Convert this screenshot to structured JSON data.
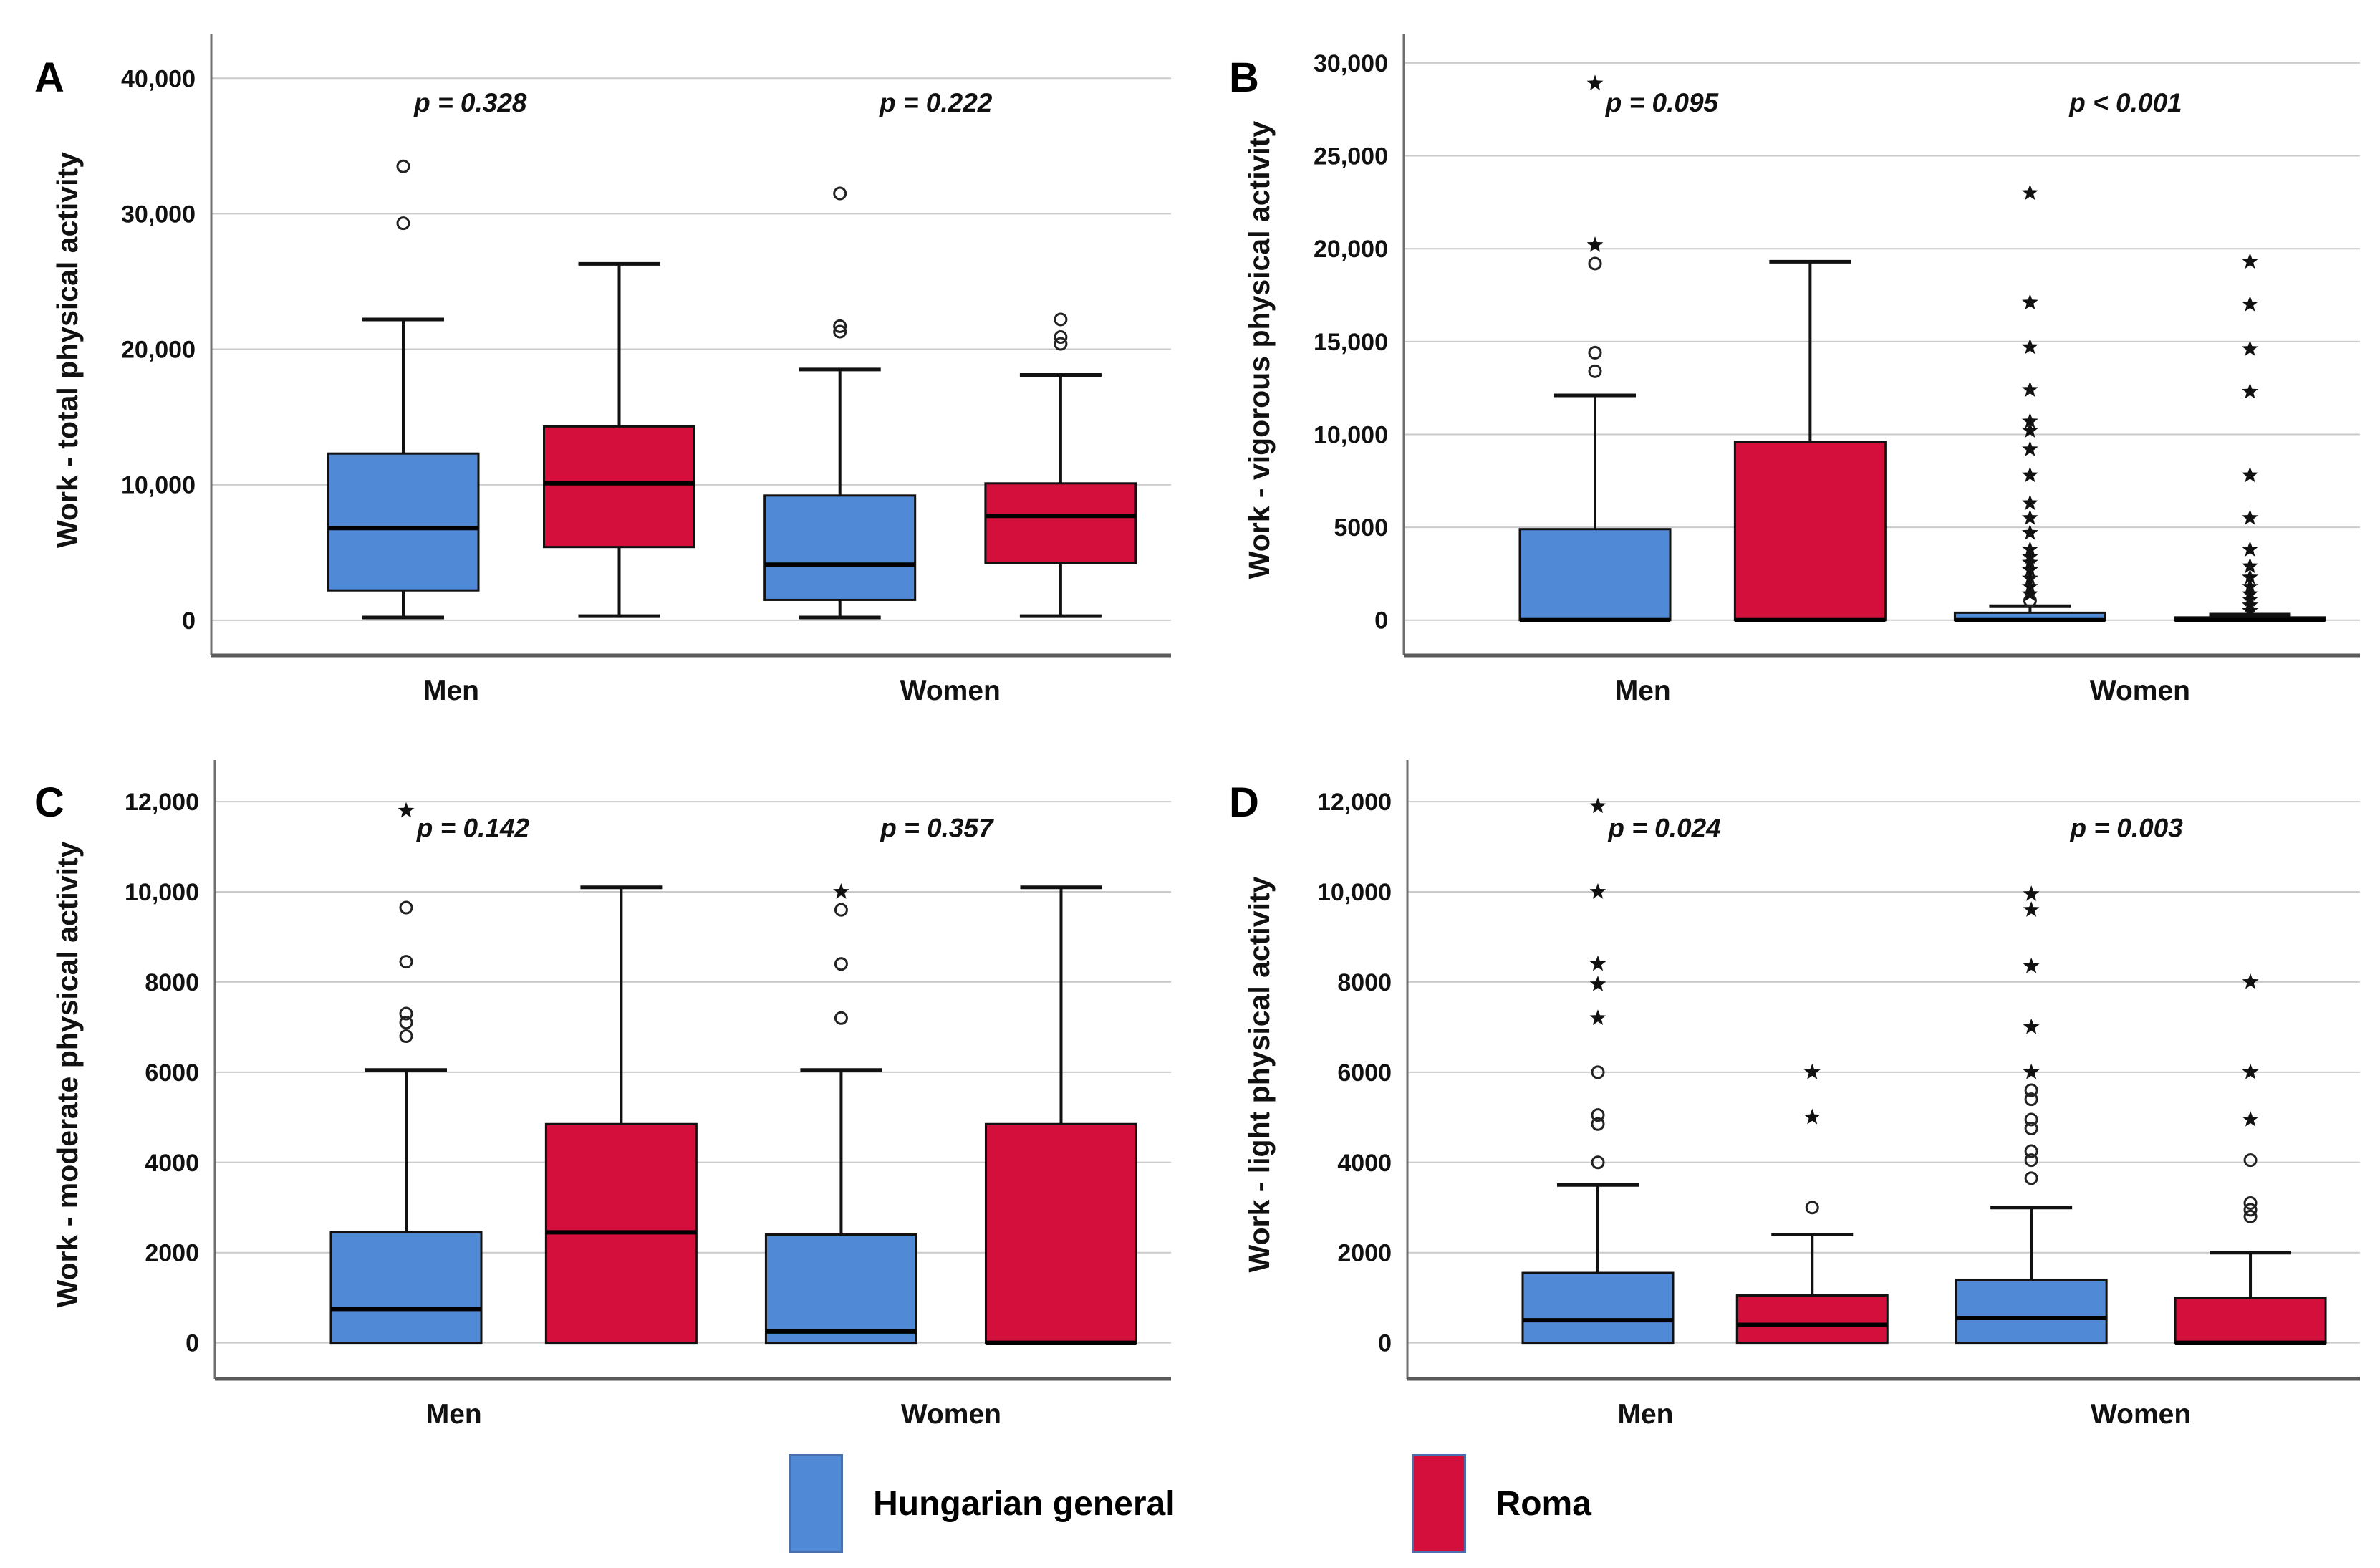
{
  "figure": {
    "type_note": "Four-panel grouped boxplot figure comparing populations by sex",
    "panels_order": [
      "A",
      "B",
      "C",
      "D"
    ],
    "categories": [
      "Men",
      "Women"
    ]
  },
  "style": {
    "hungarian_color": "#5089D6",
    "roma_color": "#D40F3C",
    "box_border": "#111111",
    "grid_color": "#cacaca",
    "axis_color": "#6e6e6e",
    "swatch_border": "#4A6FAD"
  },
  "legend": {
    "items": [
      {
        "label": "Hungarian general",
        "series": "Hungarian general"
      },
      {
        "label": "Roma",
        "series": "Roma"
      }
    ]
  },
  "chart_data": [
    {
      "type": "boxplot",
      "panel": "A",
      "ylabel": "Work - total physical activity",
      "categories": [
        "Men",
        "Women"
      ],
      "series": [
        "Hungarian general",
        "Roma"
      ],
      "ylim": [
        -2600,
        42500
      ],
      "grid": true,
      "yticks": [
        {
          "v": 0,
          "label": "0"
        },
        {
          "v": 10000,
          "label": "10,000"
        },
        {
          "v": 20000,
          "label": "20,000"
        },
        {
          "v": 30000,
          "label": "30,000"
        },
        {
          "v": 40000,
          "label": "40,000"
        }
      ],
      "p_values": [
        {
          "group": "Men",
          "text": "p = 0.328"
        },
        {
          "group": "Women",
          "text": "p = 0.222"
        }
      ],
      "boxes": [
        {
          "group": "Men",
          "series": "Hungarian general",
          "whisker_low": 200,
          "q1": 2200,
          "median": 6800,
          "q3": 12300,
          "whisker_high": 22200,
          "outliers_circle": [
            29300,
            33500
          ],
          "outliers_star": []
        },
        {
          "group": "Men",
          "series": "Roma",
          "whisker_low": 300,
          "q1": 5400,
          "median": 10100,
          "q3": 14300,
          "whisker_high": 26300,
          "outliers_circle": [],
          "outliers_star": []
        },
        {
          "group": "Women",
          "series": "Hungarian general",
          "whisker_low": 200,
          "q1": 1500,
          "median": 4100,
          "q3": 9200,
          "whisker_high": 18500,
          "outliers_circle": [
            21300,
            21700,
            31500
          ],
          "outliers_star": []
        },
        {
          "group": "Women",
          "series": "Roma",
          "whisker_low": 300,
          "q1": 4200,
          "median": 7700,
          "q3": 10100,
          "whisker_high": 18100,
          "outliers_circle": [
            20400,
            20900,
            22200
          ],
          "outliers_star": []
        }
      ]
    },
    {
      "type": "boxplot",
      "panel": "B",
      "ylabel": "Work - vigorous physical activity",
      "categories": [
        "Men",
        "Women"
      ],
      "series": [
        "Hungarian general",
        "Roma"
      ],
      "ylim": [
        -1900,
        31000
      ],
      "grid": true,
      "yticks": [
        {
          "v": 0,
          "label": "0"
        },
        {
          "v": 5000,
          "label": "5000"
        },
        {
          "v": 10000,
          "label": "10,000"
        },
        {
          "v": 15000,
          "label": "15,000"
        },
        {
          "v": 20000,
          "label": "20,000"
        },
        {
          "v": 25000,
          "label": "25,000"
        },
        {
          "v": 30000,
          "label": "30,000"
        }
      ],
      "p_values": [
        {
          "group": "Men",
          "text": "p = 0.095"
        },
        {
          "group": "Women",
          "text": "p < 0.001"
        }
      ],
      "boxes": [
        {
          "group": "Men",
          "series": "Hungarian general",
          "whisker_low": 0,
          "q1": 0,
          "median": 0,
          "q3": 4900,
          "whisker_high": 12100,
          "outliers_circle": [
            13400,
            14400,
            19200
          ],
          "outliers_star": [
            20200,
            28900
          ]
        },
        {
          "group": "Men",
          "series": "Roma",
          "whisker_low": 0,
          "q1": 0,
          "median": 0,
          "q3": 9600,
          "whisker_high": 19300,
          "outliers_circle": [],
          "outliers_star": []
        },
        {
          "group": "Women",
          "series": "Hungarian general",
          "whisker_low": 0,
          "q1": 0,
          "median": 0,
          "q3": 400,
          "whisker_high": 750,
          "outliers_circle": [
            1050
          ],
          "outliers_star": [
            1400,
            1800,
            2250,
            2700,
            3100,
            3400,
            3800,
            4700,
            5500,
            6300,
            7800,
            9200,
            10200,
            10700,
            12400,
            14700,
            17100,
            23000
          ]
        },
        {
          "group": "Women",
          "series": "Roma",
          "whisker_low": 0,
          "q1": 0,
          "median": 0,
          "q3": 150,
          "whisker_high": 300,
          "outliers_circle": [],
          "outliers_star": [
            500,
            800,
            1100,
            1400,
            1800,
            2300,
            2900,
            3800,
            5500,
            7800,
            12300,
            14600,
            17000,
            19300
          ]
        }
      ]
    },
    {
      "type": "boxplot",
      "panel": "C",
      "ylabel": "Work - moderate physical activity",
      "categories": [
        "Men",
        "Women"
      ],
      "series": [
        "Hungarian general",
        "Roma"
      ],
      "ylim": [
        -800,
        12700
      ],
      "grid": true,
      "yticks": [
        {
          "v": 0,
          "label": "0"
        },
        {
          "v": 2000,
          "label": "2000"
        },
        {
          "v": 4000,
          "label": "4000"
        },
        {
          "v": 6000,
          "label": "6000"
        },
        {
          "v": 8000,
          "label": "8000"
        },
        {
          "v": 10000,
          "label": "10,000"
        },
        {
          "v": 12000,
          "label": "12,000"
        }
      ],
      "p_values": [
        {
          "group": "Men",
          "text": "p = 0.142"
        },
        {
          "group": "Women",
          "text": "p = 0.357"
        }
      ],
      "boxes": [
        {
          "group": "Men",
          "series": "Hungarian general",
          "whisker_low": 0,
          "q1": 0,
          "median": 750,
          "q3": 2450,
          "whisker_high": 6050,
          "outliers_circle": [
            6800,
            7100,
            7300,
            8450,
            9650
          ],
          "outliers_star": [
            11800
          ]
        },
        {
          "group": "Men",
          "series": "Roma",
          "whisker_low": 0,
          "q1": 0,
          "median": 2450,
          "q3": 4850,
          "whisker_high": 10100,
          "outliers_circle": [],
          "outliers_star": []
        },
        {
          "group": "Women",
          "series": "Hungarian general",
          "whisker_low": 0,
          "q1": 0,
          "median": 250,
          "q3": 2400,
          "whisker_high": 6050,
          "outliers_circle": [
            7200,
            8400,
            9600
          ],
          "outliers_star": [
            10000
          ]
        },
        {
          "group": "Women",
          "series": "Roma",
          "whisker_low": 0,
          "q1": 0,
          "median": 0,
          "q3": 4850,
          "whisker_high": 10100,
          "outliers_circle": [],
          "outliers_star": []
        }
      ]
    },
    {
      "type": "boxplot",
      "panel": "D",
      "ylabel": "Work - light physical activity",
      "categories": [
        "Men",
        "Women"
      ],
      "series": [
        "Hungarian general",
        "Roma"
      ],
      "ylim": [
        -800,
        12700
      ],
      "grid": true,
      "yticks": [
        {
          "v": 0,
          "label": "0"
        },
        {
          "v": 2000,
          "label": "2000"
        },
        {
          "v": 4000,
          "label": "4000"
        },
        {
          "v": 6000,
          "label": "6000"
        },
        {
          "v": 8000,
          "label": "8000"
        },
        {
          "v": 10000,
          "label": "10,000"
        },
        {
          "v": 12000,
          "label": "12,000"
        }
      ],
      "p_values": [
        {
          "group": "Men",
          "text": "p = 0.024"
        },
        {
          "group": "Women",
          "text": "p = 0.003"
        }
      ],
      "boxes": [
        {
          "group": "Men",
          "series": "Hungarian general",
          "whisker_low": 0,
          "q1": 0,
          "median": 500,
          "q3": 1550,
          "whisker_high": 3500,
          "outliers_circle": [
            4000,
            4850,
            5050,
            6000
          ],
          "outliers_star": [
            7200,
            7950,
            8400,
            10000,
            11900
          ]
        },
        {
          "group": "Men",
          "series": "Roma",
          "whisker_low": 0,
          "q1": 0,
          "median": 400,
          "q3": 1050,
          "whisker_high": 2400,
          "outliers_circle": [
            3000
          ],
          "outliers_star": [
            5000,
            6000
          ]
        },
        {
          "group": "Women",
          "series": "Hungarian general",
          "whisker_low": 0,
          "q1": 0,
          "median": 550,
          "q3": 1400,
          "whisker_high": 3000,
          "outliers_circle": [
            3650,
            4050,
            4250,
            4750,
            4950,
            5400,
            5600
          ],
          "outliers_star": [
            6000,
            7000,
            8350,
            9600,
            9950
          ]
        },
        {
          "group": "Women",
          "series": "Roma",
          "whisker_low": 0,
          "q1": 0,
          "median": 0,
          "q3": 1000,
          "whisker_high": 2000,
          "outliers_circle": [
            2800,
            2950,
            3100,
            4050
          ],
          "outliers_star": [
            4950,
            6000,
            8000
          ]
        }
      ]
    }
  ]
}
